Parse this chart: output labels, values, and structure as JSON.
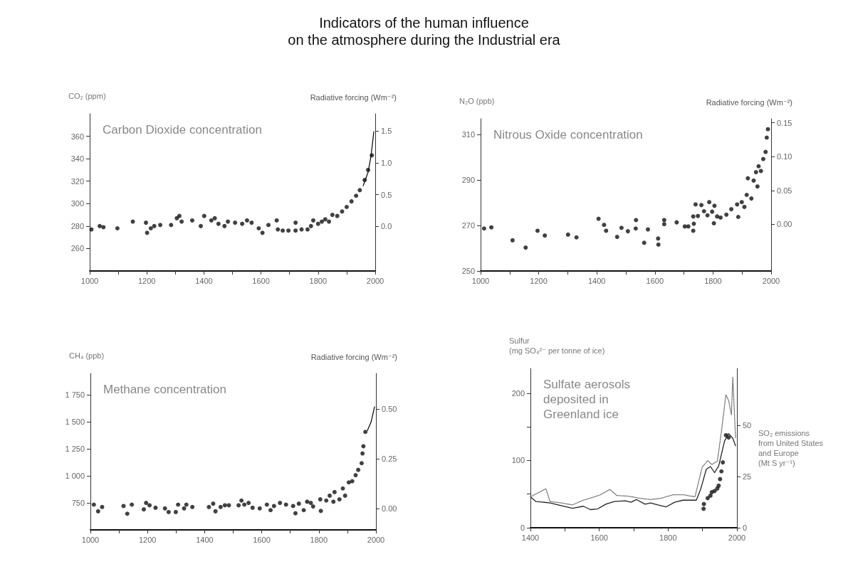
{
  "chart_data": [
    {
      "type": "scatter",
      "title": "Indicators of the human influence\non the atmosphere during the Industrial era",
      "annotations": [
        "Carbon Dioxide concentration"
      ],
      "ylabel": "CO₂ (ppm)",
      "y2label": "Radiative forcing (Wm⁻²)",
      "xlim": [
        1000,
        2000
      ],
      "xticks": [
        1000,
        {
          "value": 1100,
          "label": null
        },
        1200,
        {
          "value": 1300,
          "label": null
        },
        1400,
        {
          "value": 1500,
          "label": null
        },
        1600,
        {
          "value": 1700,
          "label": null
        },
        1800,
        {
          "value": 1900,
          "label": null
        },
        2000
      ],
      "ylim": [
        240,
        380
      ],
      "yticks": [
        260,
        280,
        300,
        320,
        340,
        360
      ],
      "y2lim": [
        -0.7,
        1.77
      ],
      "y2ticks": [
        {
          "value": 0,
          "label": "0.0"
        },
        0.5,
        {
          "value": 1,
          "label": "1.0"
        },
        1.5
      ],
      "series": [
        {
          "marker": "circle",
          "color": "#111111",
          "x": [
            1006,
            1035,
            1048,
            1097,
            1151,
            1197,
            1201,
            1214,
            1226,
            1247,
            1285,
            1305,
            1314,
            1322,
            1359,
            1389,
            1401,
            1426,
            1438,
            1451,
            1472,
            1484,
            1509,
            1534,
            1551,
            1567,
            1592,
            1605,
            1626,
            1655,
            1659,
            1676,
            1696,
            1721,
            1721,
            1742,
            1763,
            1775,
            1783,
            1800,
            1813,
            1825,
            1838,
            1850,
            1867,
            1884,
            1900,
            1917,
            1933,
            1946,
            1963,
            1975,
            1988
          ],
          "values": [
            277,
            280,
            279,
            278,
            284,
            283,
            274,
            278,
            280,
            281,
            281,
            287,
            289,
            284,
            285,
            280,
            289,
            285,
            287,
            282,
            280,
            284,
            283,
            282,
            285,
            283,
            278,
            274,
            281,
            285,
            277,
            276,
            276,
            283,
            276,
            277,
            277,
            280,
            285,
            282,
            284,
            286,
            284,
            290,
            289,
            293,
            297,
            302,
            307,
            312,
            321,
            330,
            343
          ]
        },
        {
          "type": "line",
          "line_style": "solid",
          "color": "#111111",
          "x": [
            1958,
            1975,
            1985,
            1995
          ],
          "values": [
            316,
            328,
            342,
            364
          ]
        }
      ]
    },
    {
      "type": "scatter",
      "annotations": [
        "Nitrous Oxide concentration"
      ],
      "ylabel": "N₂O (ppb)",
      "y2label": "Radiative forcing (Wm⁻²)",
      "xlim": [
        1000,
        2000
      ],
      "xticks": [
        1000,
        {
          "value": 1100,
          "label": null
        },
        1200,
        {
          "value": 1300,
          "label": null
        },
        1400,
        {
          "value": 1500,
          "label": null
        },
        1600,
        {
          "value": 1700,
          "label": null
        },
        1800,
        {
          "value": 1900,
          "label": null
        },
        2000
      ],
      "ylim": [
        250,
        317
      ],
      "yticks": [
        250,
        270,
        290,
        310
      ],
      "y2lim": [
        -0.069,
        0.156
      ],
      "y2ticks": [
        {
          "value": 0,
          "label": "0.00"
        },
        0.05,
        {
          "value": 0.1,
          "label": "0.10"
        },
        0.15
      ],
      "series": [
        {
          "marker": "circle",
          "color": "#111111",
          "x": [
            1012,
            1037,
            1110,
            1155,
            1196,
            1221,
            1301,
            1330,
            1406,
            1425,
            1432,
            1470,
            1485,
            1507,
            1534,
            1535,
            1563,
            1576,
            1611,
            1612,
            1632,
            1632,
            1675,
            1703,
            1715,
            1732,
            1734,
            1732,
            1740,
            1748,
            1760,
            1769,
            1781,
            1787,
            1797,
            1803,
            1805,
            1814,
            1826,
            1846,
            1863,
            1883,
            1887,
            1899,
            1908,
            1916,
            1920,
            1932,
            1940,
            1948,
            1953,
            1957,
            1965,
            1973,
            1981,
            1985,
            1989
          ],
          "values": [
            268.7,
            269.2,
            263.5,
            260.3,
            267.7,
            265.6,
            266,
            264.8,
            273,
            270.3,
            267.7,
            265,
            269,
            267.5,
            268.7,
            272.4,
            262.4,
            268.3,
            264.3,
            261.6,
            272.4,
            270.6,
            271.4,
            269.6,
            269.6,
            267.7,
            270.8,
            274,
            279.3,
            274.2,
            279,
            276.3,
            274.5,
            280.3,
            276.1,
            271,
            278.7,
            274,
            273.5,
            274.8,
            277.2,
            279.3,
            273.8,
            280.3,
            278.2,
            283.5,
            290.8,
            281.9,
            289.8,
            293.5,
            287.2,
            296.1,
            294,
            299.3,
            302.4,
            308.7,
            312.4
          ]
        }
      ]
    },
    {
      "type": "scatter",
      "annotations": [
        "Methane concentration"
      ],
      "ylabel": "CH₄ (ppb)",
      "y2label": "Radiative forcing (Wm⁻²)",
      "xlim": [
        1000,
        2000
      ],
      "xticks": [
        1000,
        {
          "value": 1100,
          "label": null
        },
        1200,
        {
          "value": 1300,
          "label": null
        },
        1400,
        {
          "value": 1500,
          "label": null
        },
        1600,
        {
          "value": 1700,
          "label": null
        },
        1800,
        {
          "value": 1900,
          "label": null
        },
        2000
      ],
      "ylim": [
        500,
        1950
      ],
      "yticks": [
        750,
        {
          "value": 1000,
          "label": "1 000"
        },
        {
          "value": 1250,
          "label": "1 250"
        },
        {
          "value": 1500,
          "label": "1 500"
        },
        {
          "value": 1750,
          "label": "1 750"
        }
      ],
      "y2lim": [
        -0.107,
        0.68
      ],
      "y2ticks": [
        {
          "value": 0,
          "label": "0.00"
        },
        0.25,
        {
          "value": 0.5,
          "label": "0.50"
        }
      ],
      "series": [
        {
          "marker": "circle",
          "color": "#111111",
          "x": [
            1012,
            1027,
            1041,
            1116,
            1129,
            1145,
            1187,
            1195,
            1207,
            1228,
            1261,
            1274,
            1299,
            1307,
            1328,
            1336,
            1357,
            1415,
            1430,
            1438,
            1456,
            1471,
            1485,
            1519,
            1529,
            1539,
            1554,
            1568,
            1593,
            1618,
            1631,
            1643,
            1664,
            1685,
            1710,
            1718,
            1730,
            1747,
            1759,
            1772,
            1780,
            1805,
            1807,
            1826,
            1838,
            1851,
            1855,
            1872,
            1884,
            1892,
            1905,
            1917,
            1929,
            1938,
            1950,
            1953,
            1956,
            1963
          ],
          "values": [
            734,
            672,
            712,
            721,
            650,
            734,
            690,
            750,
            728,
            705,
            699,
            665,
            665,
            734,
            699,
            734,
            712,
            712,
            743,
            672,
            712,
            728,
            728,
            728,
            772,
            734,
            750,
            705,
            699,
            734,
            683,
            721,
            750,
            734,
            721,
            654,
            743,
            683,
            761,
            750,
            717,
            783,
            676,
            772,
            817,
            761,
            850,
            783,
            884,
            817,
            940,
            951,
            1007,
            1056,
            1118,
            1208,
            1275,
            1408
          ]
        },
        {
          "type": "line",
          "line_style": "solid",
          "color": "#111111",
          "x": [
            1970,
            1983,
            1995
          ],
          "values": [
            1420,
            1500,
            1640
          ]
        }
      ]
    },
    {
      "type": "line",
      "annotations": [
        "Sulfate aerosols\ndeposited in\nGreenland ice"
      ],
      "ylabel": "Sulfur\n(mg SO₄²⁻ per tonne of ice)",
      "y2label": "SO₂ emissions\nfrom United States\nand Europe\n(Mt S yr⁻¹)",
      "xlim": [
        1400,
        2000
      ],
      "xticks": [
        1400,
        {
          "value": 1500,
          "label": null
        },
        1600,
        {
          "value": 1700,
          "label": null
        },
        1800,
        {
          "value": 1900,
          "label": null
        },
        2000
      ],
      "ylim": [
        0,
        237
      ],
      "yticks": [
        0,
        {
          "value": 50,
          "label": null
        },
        100,
        {
          "value": 150,
          "label": null
        },
        200
      ],
      "y2lim": [
        0,
        78
      ],
      "y2ticks": [
        0,
        25,
        50
      ],
      "series": [
        {
          "line_style": "solid",
          "color": "#222222",
          "x": [
            1400,
            1416,
            1457,
            1489,
            1522,
            1554,
            1574,
            1595,
            1619,
            1643,
            1676,
            1692,
            1708,
            1733,
            1749,
            1770,
            1794,
            1819,
            1843,
            1862,
            1882,
            1895,
            1911,
            1923,
            1935,
            1947,
            1964,
            1976,
            1988,
            1996
          ],
          "values": [
            46,
            39,
            37,
            33,
            29,
            32,
            27,
            28,
            35,
            39,
            40,
            38,
            42,
            35,
            37,
            34,
            31,
            38,
            41,
            41,
            41,
            58,
            87,
            91,
            82,
            92,
            129,
            140,
            133,
            122
          ]
        },
        {
          "line_style": "dotted",
          "color": "#777777",
          "x": [
            1400,
            1445,
            1457,
            1489,
            1522,
            1554,
            1586,
            1603,
            1631,
            1651,
            1684,
            1716,
            1749,
            1781,
            1814,
            1846,
            1878,
            1899,
            1915,
            1927,
            1943,
            1955,
            1968,
            1976,
            1984,
            1988,
            1996
          ],
          "values": [
            46,
            58,
            39,
            37,
            34,
            41,
            46,
            49,
            57,
            48,
            47,
            44,
            42,
            44,
            49,
            49,
            46,
            90,
            100,
            94,
            99,
            143,
            198,
            189,
            168,
            224,
            134
          ]
        },
        {
          "type": "scatter",
          "marker": "circle",
          "axis": "y2",
          "color": "#111111",
          "x": [
            1903,
            1904,
            1915,
            1923,
            1927,
            1935,
            1943,
            1947,
            1951,
            1955,
            1959,
            1968,
            1976
          ],
          "values": [
            9.3,
            11.6,
            14.5,
            15.7,
            17.4,
            18,
            19.2,
            20.6,
            23.8,
            27.6,
            32,
            45.3,
            44.2
          ]
        }
      ]
    }
  ]
}
